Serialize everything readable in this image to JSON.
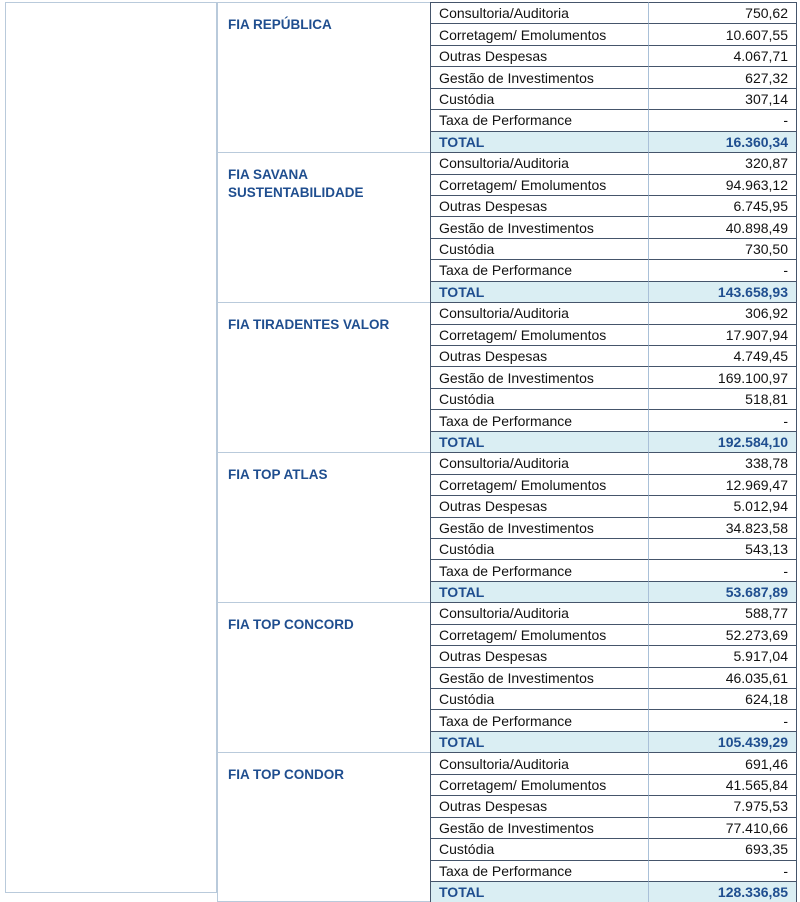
{
  "colors": {
    "accent_blue": "#1f4e8f",
    "total_row_bg": "#daeef3",
    "dark_border": "#45556b",
    "light_border": "#b9cadb",
    "value_divider": "#a9c0d8",
    "row_text": "#111111",
    "page_bg": "#ffffff"
  },
  "expense_table": {
    "funds": [
      {
        "name": "FIA REPÚBLICA",
        "rows": [
          {
            "label": "Consultoria/Auditoria",
            "value": "750,62"
          },
          {
            "label": "Corretagem/ Emolumentos",
            "value": "10.607,55"
          },
          {
            "label": "Outras Despesas",
            "value": "4.067,71"
          },
          {
            "label": "Gestão de Investimentos",
            "value": "627,32"
          },
          {
            "label": "Custódia",
            "value": "307,14"
          },
          {
            "label": "Taxa de Performance",
            "value": "-"
          }
        ],
        "total": {
          "label": "TOTAL",
          "value": "16.360,34"
        }
      },
      {
        "name": "FIA SAVANA SUSTENTABILIDADE",
        "rows": [
          {
            "label": "Consultoria/Auditoria",
            "value": "320,87"
          },
          {
            "label": "Corretagem/ Emolumentos",
            "value": "94.963,12"
          },
          {
            "label": "Outras Despesas",
            "value": "6.745,95"
          },
          {
            "label": "Gestão de Investimentos",
            "value": "40.898,49"
          },
          {
            "label": "Custódia",
            "value": "730,50"
          },
          {
            "label": "Taxa de Performance",
            "value": "-"
          }
        ],
        "total": {
          "label": "TOTAL",
          "value": "143.658,93"
        }
      },
      {
        "name": "FIA TIRADENTES VALOR",
        "rows": [
          {
            "label": "Consultoria/Auditoria",
            "value": "306,92"
          },
          {
            "label": "Corretagem/ Emolumentos",
            "value": "17.907,94"
          },
          {
            "label": "Outras Despesas",
            "value": "4.749,45"
          },
          {
            "label": "Gestão de Investimentos",
            "value": "169.100,97"
          },
          {
            "label": "Custódia",
            "value": "518,81"
          },
          {
            "label": "Taxa de Performance",
            "value": "-"
          }
        ],
        "total": {
          "label": "TOTAL",
          "value": "192.584,10"
        }
      },
      {
        "name": "FIA TOP ATLAS",
        "rows": [
          {
            "label": "Consultoria/Auditoria",
            "value": "338,78"
          },
          {
            "label": "Corretagem/ Emolumentos",
            "value": "12.969,47"
          },
          {
            "label": "Outras Despesas",
            "value": "5.012,94"
          },
          {
            "label": "Gestão de Investimentos",
            "value": "34.823,58"
          },
          {
            "label": "Custódia",
            "value": "543,13"
          },
          {
            "label": "Taxa de Performance",
            "value": "-"
          }
        ],
        "total": {
          "label": "TOTAL",
          "value": "53.687,89"
        }
      },
      {
        "name": "FIA TOP CONCORD",
        "rows": [
          {
            "label": "Consultoria/Auditoria",
            "value": "588,77"
          },
          {
            "label": "Corretagem/ Emolumentos",
            "value": "52.273,69"
          },
          {
            "label": "Outras Despesas",
            "value": "5.917,04"
          },
          {
            "label": "Gestão de Investimentos",
            "value": "46.035,61"
          },
          {
            "label": "Custódia",
            "value": "624,18"
          },
          {
            "label": "Taxa de Performance",
            "value": "-"
          }
        ],
        "total": {
          "label": "TOTAL",
          "value": "105.439,29"
        }
      },
      {
        "name": "FIA TOP CONDOR",
        "rows": [
          {
            "label": "Consultoria/Auditoria",
            "value": "691,46"
          },
          {
            "label": "Corretagem/ Emolumentos",
            "value": "41.565,84"
          },
          {
            "label": "Outras Despesas",
            "value": "7.975,53"
          },
          {
            "label": "Gestão de Investimentos",
            "value": "77.410,66"
          },
          {
            "label": "Custódia",
            "value": "693,35"
          },
          {
            "label": "Taxa de Performance",
            "value": "-"
          }
        ],
        "total": {
          "label": "TOTAL",
          "value": "128.336,85"
        }
      }
    ]
  }
}
